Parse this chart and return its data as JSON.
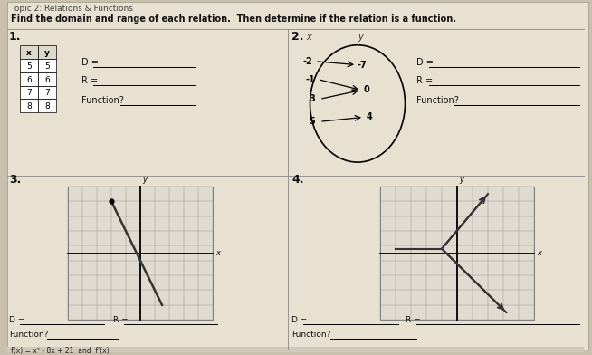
{
  "title_line1": "Topic 2: Relations & Functions",
  "title_line2": "Find the domain and range of each relation.  Then determine if the relation is a function.",
  "bg_color": "#c8bfad",
  "page_color": "#e8e0d0",
  "table_data": [
    [
      "x",
      "y"
    ],
    [
      "5",
      "5"
    ],
    [
      "6",
      "6"
    ],
    [
      "7",
      "7"
    ],
    [
      "8",
      "8"
    ]
  ],
  "label1": "1.",
  "label2": "2.",
  "label3": "3.",
  "label4": "4.",
  "mapping_x_vals": [
    "-2",
    "-1",
    "3",
    "5"
  ],
  "mapping_y_vals": [
    "-7",
    "0",
    "4"
  ],
  "bottom_text": "f(x) = x² - 8x + 21  and  f'(x)"
}
